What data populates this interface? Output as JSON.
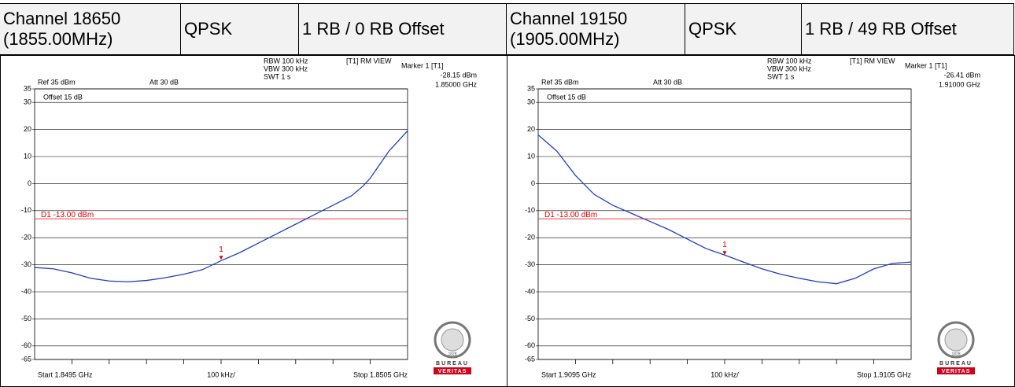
{
  "table": {
    "header": [
      "Channel 18650\n(1855.00MHz)",
      "QPSK",
      "1 RB / 0 RB Offset",
      "Channel 19150\n(1905.00MHz)",
      "QPSK",
      "1 RB / 49 RB Offset"
    ]
  },
  "chart_data": [
    {
      "type": "line",
      "settings": [
        "RBW 100 kHz",
        "VBW 300 kHz",
        "SWT 1 s"
      ],
      "view": "[T1] RM VIEW",
      "marker_title": "Marker 1 [T1]",
      "marker_level": "-28.15 dBm",
      "marker_freq": "1.85000 GHz",
      "ref": "Ref 35 dBm",
      "att": "Att 30 dB",
      "offset": "Offset 15 dB",
      "display_line": {
        "value": -13,
        "label": "D1 -13.00 dBm"
      },
      "marker": {
        "x": 1.85,
        "y": -28.15,
        "label": "1"
      },
      "start": "Start 1.8495 GHz",
      "span_div": "100 kHz/",
      "stop": "Stop 1.8505 GHz",
      "xlim": [
        1.8495,
        1.8505
      ],
      "ylim": [
        -65,
        35
      ],
      "yticks": [
        35,
        30,
        20,
        10,
        0,
        -10,
        -20,
        -30,
        -40,
        -50,
        -60,
        -65
      ],
      "series": [
        {
          "color": "#1f3fc4",
          "x": [
            1.8495,
            1.84955,
            1.8496,
            1.84965,
            1.8497,
            1.84975,
            1.8498,
            1.84985,
            1.8499,
            1.84995,
            1.85,
            1.85005,
            1.8501,
            1.85015,
            1.8502,
            1.85025,
            1.8503,
            1.85035,
            1.85038,
            1.8504,
            1.85045,
            1.8505
          ],
          "values": [
            -31,
            -31.5,
            -33,
            -35,
            -36,
            -36.3,
            -35.8,
            -34.8,
            -33.5,
            -31.8,
            -28.5,
            -25.5,
            -22,
            -18.5,
            -15,
            -11.5,
            -8,
            -4.5,
            -1,
            2,
            12,
            19.5
          ]
        }
      ],
      "logo": {
        "top": "BUREAU",
        "bottom": "VERITAS",
        "year": "1828"
      }
    },
    {
      "type": "line",
      "settings": [
        "RBW 100 kHz",
        "VBW 300 kHz",
        "SWT 1 s"
      ],
      "view": "[T1] RM VIEW",
      "marker_title": "Marker 1 [T1]",
      "marker_level": "-26.41 dBm",
      "marker_freq": "1.91000 GHz",
      "ref": "Ref 35 dBm",
      "att": "Att 30 dB",
      "offset": "Offset 15 dB",
      "display_line": {
        "value": -13,
        "label": "D1 -13.00 dBm"
      },
      "marker": {
        "x": 1.91,
        "y": -26.41,
        "label": "1"
      },
      "start": "Start 1.9095 GHz",
      "span_div": "100 kHz/",
      "stop": "Stop 1.9105 GHz",
      "xlim": [
        1.9095,
        1.9105
      ],
      "ylim": [
        -65,
        35
      ],
      "yticks": [
        35,
        30,
        20,
        10,
        0,
        -10,
        -20,
        -30,
        -40,
        -50,
        -60,
        -65
      ],
      "series": [
        {
          "color": "#1f3fc4",
          "x": [
            1.9095,
            1.90955,
            1.9096,
            1.90965,
            1.9097,
            1.90975,
            1.9098,
            1.90985,
            1.9099,
            1.90995,
            1.91,
            1.91005,
            1.9101,
            1.91015,
            1.9102,
            1.91025,
            1.9103,
            1.91035,
            1.9104,
            1.91045,
            1.9105
          ],
          "values": [
            18,
            12,
            3,
            -4,
            -8,
            -11,
            -14,
            -17,
            -20.5,
            -24,
            -26.4,
            -29,
            -31.5,
            -33.5,
            -35,
            -36.3,
            -37,
            -35,
            -31.5,
            -29.5,
            -29
          ]
        }
      ],
      "logo": {
        "top": "BUREAU",
        "bottom": "VERITAS",
        "year": "1828"
      }
    }
  ]
}
